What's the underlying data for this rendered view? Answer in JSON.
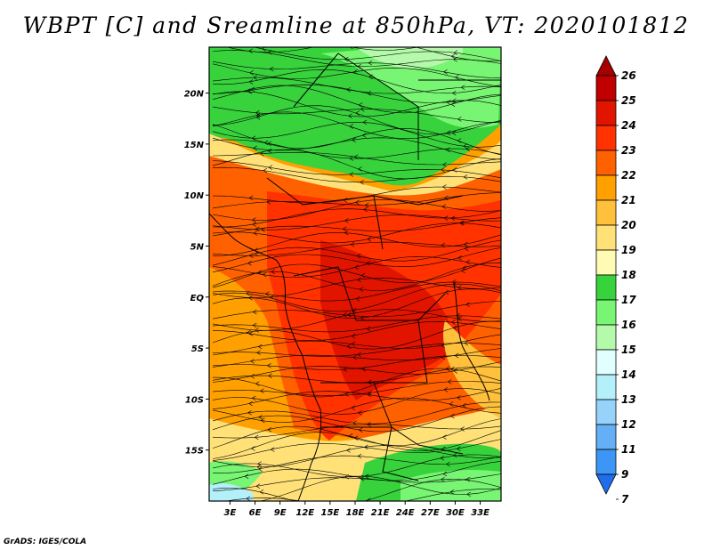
{
  "title": "WBPT [C] and Sreamline at 850hPa, VT: 2020101812",
  "credit": "GrADS: IGES/COLA",
  "map": {
    "lat_labels": [
      "20N",
      "15N",
      "10N",
      "5N",
      "EQ",
      "5S",
      "10S",
      "15S"
    ],
    "lat_values": [
      20,
      15,
      10,
      5,
      0,
      -5,
      -10,
      -15
    ],
    "lon_labels": [
      "3E",
      "6E",
      "9E",
      "12E",
      "15E",
      "18E",
      "21E",
      "24E",
      "27E",
      "30E",
      "33E"
    ],
    "lon_values": [
      3,
      6,
      9,
      12,
      15,
      18,
      21,
      24,
      27,
      30,
      33
    ],
    "lat_range": [
      -20,
      24.5
    ],
    "lon_range": [
      0.5,
      35.5
    ]
  },
  "colorbar": {
    "labels": [
      "7",
      "9",
      "11",
      "12",
      "13",
      "14",
      "15",
      "16",
      "17",
      "18",
      "19",
      "20",
      "21",
      "22",
      "23",
      "24",
      "25",
      "26"
    ],
    "colors": [
      "#1e6eeb",
      "#3c96f5",
      "#64aff5",
      "#96d2fa",
      "#b4f0fa",
      "#e1ffff",
      "#b4faaa",
      "#78f573",
      "#37d23c",
      "#fffab4",
      "#ffe178",
      "#ffc03c",
      "#ffa000",
      "#ff6000",
      "#ff3200",
      "#e11400",
      "#c00000",
      "#a50000"
    ]
  }
}
